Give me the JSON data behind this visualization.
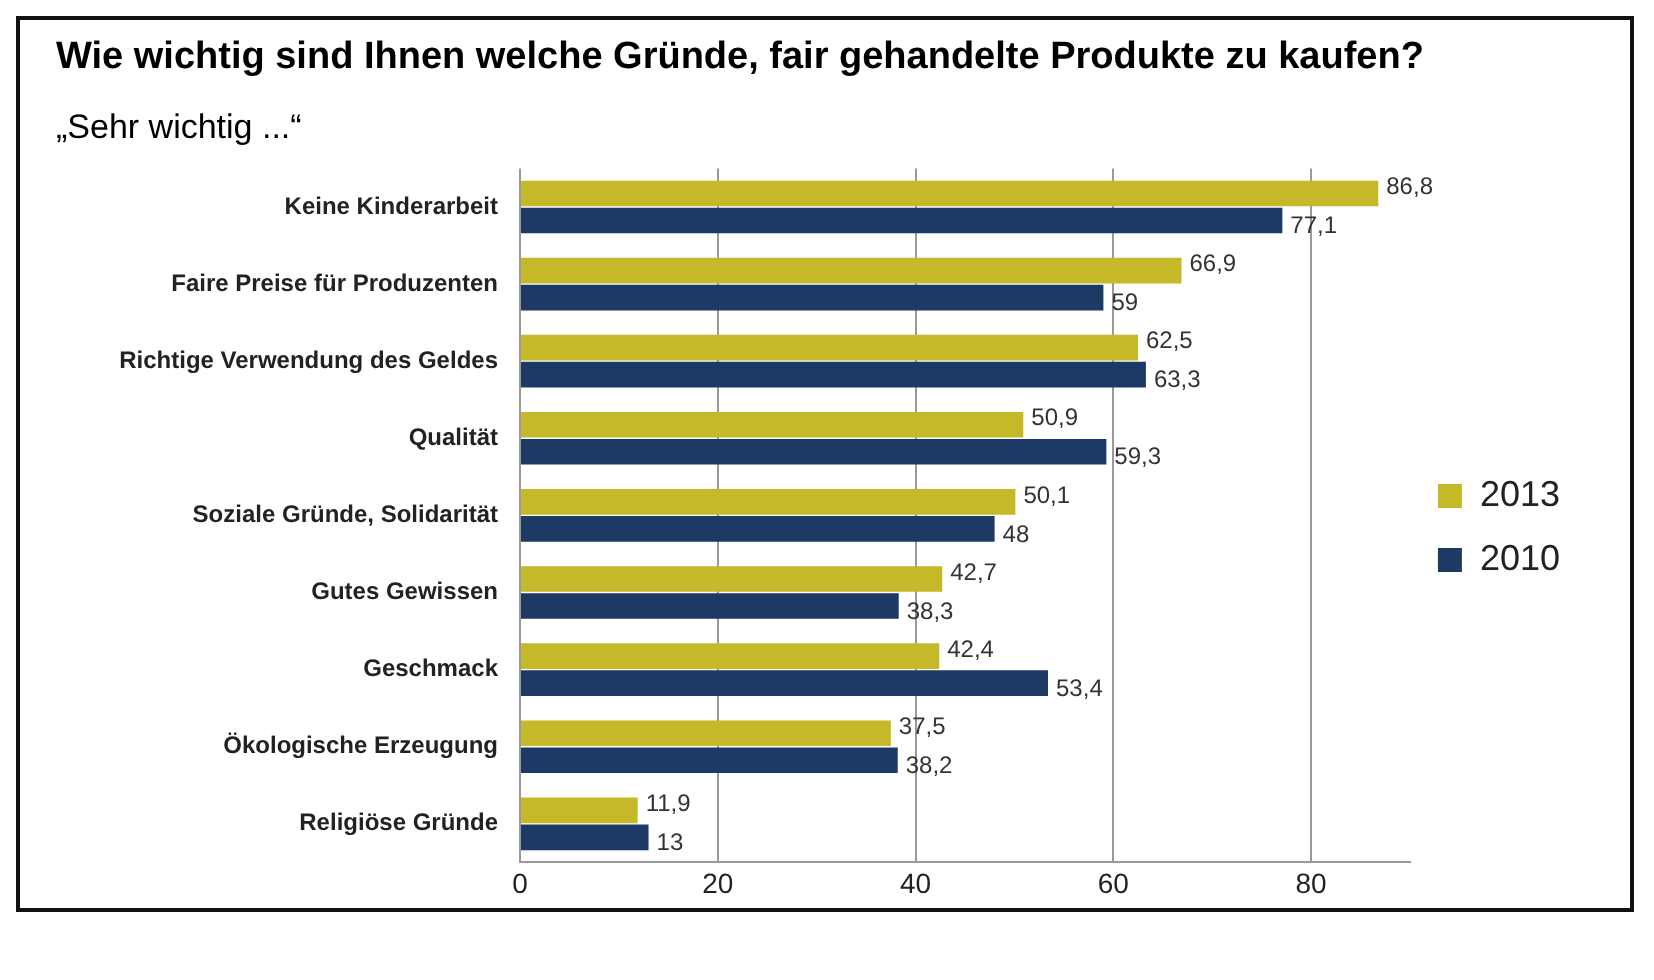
{
  "chart_data": {
    "type": "bar",
    "orientation": "horizontal",
    "title": "Wie wichtig sind Ihnen welche Gründe, fair gehandelte Produkte zu kaufen?",
    "subtitle": "„Sehr wichtig ...“",
    "categories": [
      "Keine Kinderarbeit",
      "Faire Preise für Produzenten",
      "Richtige Verwendung des Geldes",
      "Qualität",
      "Soziale Gründe, Solidarität",
      "Gutes Gewissen",
      "Geschmack",
      "Ökologische Erzeugung",
      "Religiöse Gründe"
    ],
    "series": [
      {
        "name": "2013",
        "color": "#c5b829",
        "values": [
          86.8,
          66.9,
          62.5,
          50.9,
          50.1,
          42.7,
          42.4,
          37.5,
          11.9
        ],
        "value_labels": [
          "86,8",
          "66,9",
          "62,5",
          "50,9",
          "50,1",
          "42,7",
          "42,4",
          "37,5",
          "11,9"
        ]
      },
      {
        "name": "2010",
        "color": "#1c3a63",
        "values": [
          77.1,
          59,
          63.3,
          59.3,
          48,
          38.3,
          53.4,
          38.2,
          13
        ],
        "value_labels": [
          "77,1",
          "59",
          "63,3",
          "59,3",
          "48",
          "38,3",
          "53,4",
          "38,2",
          "13"
        ]
      }
    ],
    "xlim": [
      0,
      90
    ],
    "xticks": [
      0,
      20,
      40,
      60,
      80
    ],
    "grid": "x",
    "legend": "right"
  }
}
